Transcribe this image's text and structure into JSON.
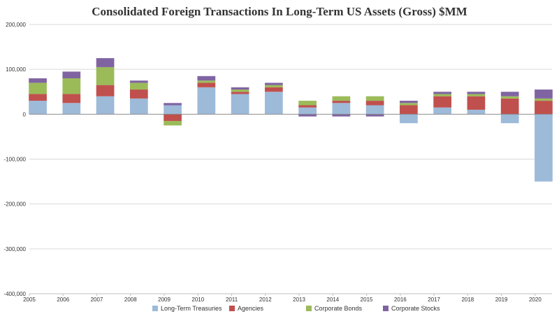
{
  "chart_data": {
    "type": "bar",
    "stacked": true,
    "title": "Consolidated Foreign Transactions In Long-Term US Assets (Gross) $MM",
    "xlabel": "",
    "ylabel": "",
    "ylim": [
      -400000,
      200000
    ],
    "y_ticks": [
      "200,000",
      "100,000",
      "0",
      "-100,000",
      "-200,000",
      "-300,000",
      "-400,000"
    ],
    "y_tick_values": [
      200000,
      100000,
      0,
      -100000,
      -200000,
      -300000,
      -400000
    ],
    "x_ticks": [
      "2005",
      "2006",
      "2007",
      "2008",
      "2009",
      "2010",
      "2011",
      "2012",
      "2013",
      "2014",
      "2015",
      "2016",
      "2017",
      "2018",
      "2019",
      "2020"
    ],
    "x_range": [
      2005.0,
      2020.5
    ],
    "gridlines": "horizontal",
    "legend_position": "bottom",
    "colors": {
      "treasuries": "#9dbad9",
      "agencies": "#c0504d",
      "corporate_bonds": "#9bbb59",
      "corporate_stocks": "#8064a2"
    },
    "series": [
      {
        "name": "Long-Term Treasuries",
        "key": "treasuries"
      },
      {
        "name": "Agencies",
        "key": "agencies"
      },
      {
        "name": "Corporate Bonds",
        "key": "corporate_bonds"
      },
      {
        "name": "Corporate Stocks",
        "key": "corporate_stocks"
      }
    ],
    "points": [
      {
        "year": 2005,
        "t": 30000,
        "a": 15000,
        "c": 25000,
        "s": 10000
      },
      {
        "year": 2006,
        "t": 25000,
        "a": 20000,
        "c": 35000,
        "s": 15000
      },
      {
        "year": 2007,
        "t": 40000,
        "a": 25000,
        "c": 40000,
        "s": 20000
      },
      {
        "year": 2008,
        "t": 35000,
        "a": 20000,
        "c": 15000,
        "s": 5000
      },
      {
        "year": 2009,
        "t": 20000,
        "a": -15000,
        "c": -10000,
        "s": 5000
      },
      {
        "year": 2010,
        "t": 60000,
        "a": 10000,
        "c": 5000,
        "s": 10000
      },
      {
        "year": 2011,
        "t": 45000,
        "a": 5000,
        "c": 5000,
        "s": 5000
      },
      {
        "year": 2012,
        "t": 50000,
        "a": 10000,
        "c": 5000,
        "s": 5000
      },
      {
        "year": 2013,
        "t": 15000,
        "a": 5000,
        "c": 10000,
        "s": -5000
      },
      {
        "year": 2014,
        "t": 25000,
        "a": 5000,
        "c": 10000,
        "s": -5000
      },
      {
        "year": 2015,
        "t": 20000,
        "a": 10000,
        "c": 10000,
        "s": -5000
      },
      {
        "year": 2016,
        "t": -20000,
        "a": 20000,
        "c": 5000,
        "s": 5000
      },
      {
        "year": 2017,
        "t": 15000,
        "a": 25000,
        "c": 5000,
        "s": 5000
      },
      {
        "year": 2018,
        "t": 10000,
        "a": 30000,
        "c": 5000,
        "s": 5000
      },
      {
        "year": 2019,
        "t": -20000,
        "a": 35000,
        "c": 5000,
        "s": 10000
      },
      {
        "year": 2020,
        "t": -150000,
        "a": 30000,
        "c": 5000,
        "s": 20000
      }
    ]
  }
}
